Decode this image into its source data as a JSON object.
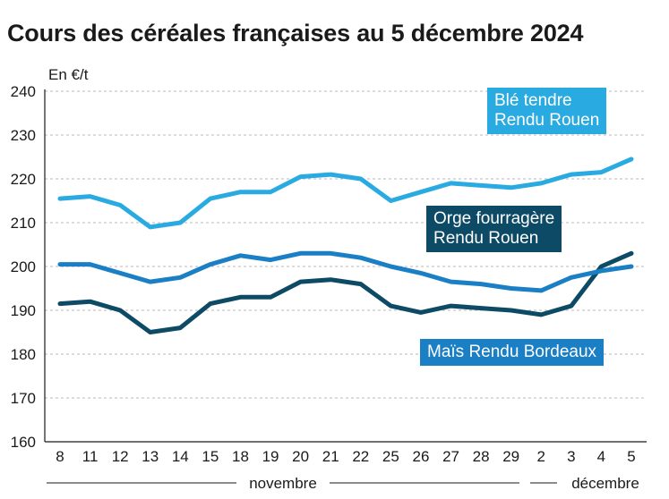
{
  "title": "Cours des céréales françaises au 5 décembre 2024",
  "unit_label": "En €/t",
  "months": [
    "novembre",
    "décembre"
  ],
  "chart_data": {
    "type": "line",
    "title": "Cours des céréales françaises au 5 décembre 2024",
    "ylabel": "En €/t",
    "ylim": [
      160,
      240
    ],
    "yticks": [
      160,
      170,
      180,
      190,
      200,
      210,
      220,
      230,
      240
    ],
    "grid": true,
    "categories": [
      "8",
      "11",
      "12",
      "13",
      "14",
      "15",
      "18",
      "19",
      "20",
      "21",
      "22",
      "25",
      "26",
      "27",
      "28",
      "29",
      "2",
      "3",
      "4",
      "5"
    ],
    "series": [
      {
        "name": "Blé tendre Rendu Rouen",
        "label_lines": [
          "Blé tendre",
          "Rendu Rouen"
        ],
        "color": "#29abe2",
        "values": [
          215.5,
          216,
          214,
          209,
          210,
          215.5,
          217,
          217,
          220.5,
          221,
          220,
          215,
          217,
          219,
          218.5,
          218,
          219,
          221,
          221.5,
          224.5
        ]
      },
      {
        "name": "Orge fourragère Rendu Rouen",
        "label_lines": [
          "Orge fourragère",
          "Rendu Rouen"
        ],
        "color": "#0d4a66",
        "values": [
          191.5,
          192,
          190,
          185,
          186,
          191.5,
          193,
          193,
          196.5,
          197,
          196,
          191,
          189.5,
          191,
          190.5,
          190,
          189,
          191,
          200,
          203
        ]
      },
      {
        "name": "Maïs Rendu Bordeaux",
        "label_lines": [
          "Maïs Rendu Bordeaux"
        ],
        "color": "#1a7fc4",
        "values": [
          200.5,
          200.5,
          198.5,
          196.5,
          197.5,
          200.5,
          202.5,
          201.5,
          203,
          203,
          202,
          200,
          198.5,
          196.5,
          196,
          195,
          194.5,
          197.5,
          199,
          200
        ]
      }
    ]
  }
}
